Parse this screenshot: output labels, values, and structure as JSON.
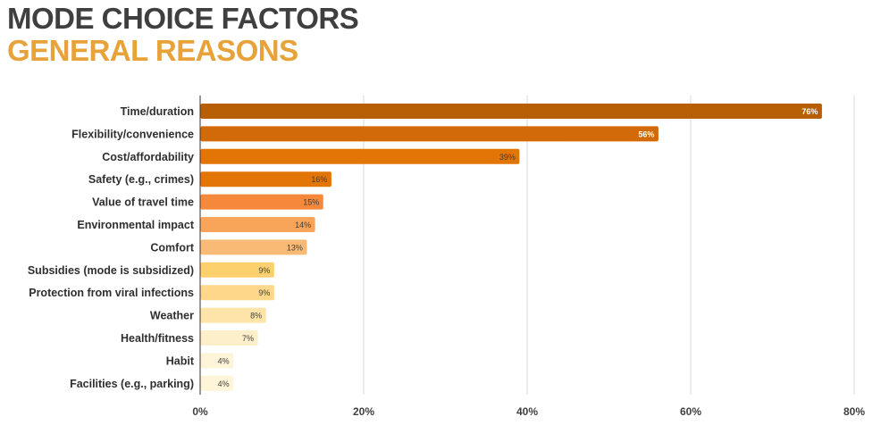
{
  "header": {
    "title": "MODE CHOICE FACTORS",
    "subtitle": "GENERAL REASONS"
  },
  "chart_data": {
    "type": "bar",
    "orientation": "horizontal",
    "categories": [
      "Time/duration",
      "Flexibility/convenience",
      "Cost/affordability",
      "Safety (e.g., crimes)",
      "Value of travel time",
      "Environmental impact",
      "Comfort",
      "Subsidies (mode is subsidized)",
      "Protection from viral infections",
      "Weather",
      "Health/fitness",
      "Habit",
      "Facilities (e.g., parking)"
    ],
    "values": [
      76,
      56,
      39,
      16,
      15,
      14,
      13,
      9,
      9,
      8,
      7,
      4,
      4
    ],
    "value_labels": [
      "76%",
      "56%",
      "39%",
      "16%",
      "15%",
      "14%",
      "13%",
      "9%",
      "9%",
      "8%",
      "7%",
      "4%",
      "4%"
    ],
    "colors": [
      "#b85e04",
      "#d36a0a",
      "#e37506",
      "#e37506",
      "#f5883a",
      "#f8a55a",
      "#f9ba76",
      "#fdd06e",
      "#fed78b",
      "#fee4a8",
      "#feefcb",
      "#fef4d8",
      "#fef4d8"
    ],
    "label_colors": [
      "#ffffff",
      "#ffffff",
      "#3f3f3f",
      "#3f3f3f",
      "#3f3f3f",
      "#3f3f3f",
      "#3f3f3f",
      "#3f3f3f",
      "#3f3f3f",
      "#3f3f3f",
      "#3f3f3f",
      "#3f3f3f",
      "#3f3f3f"
    ],
    "xlim": [
      0,
      80
    ],
    "xticks": [
      0,
      20,
      40,
      60,
      80
    ],
    "xtick_labels": [
      "0%",
      "20%",
      "40%",
      "60%",
      "80%"
    ],
    "grid": true,
    "legend": "none"
  }
}
